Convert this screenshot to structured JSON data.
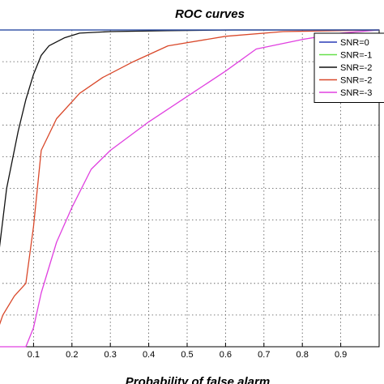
{
  "chart_data": {
    "type": "line",
    "title": "ROC curves",
    "xlabel": "Probability of false alarm",
    "ylabel": "",
    "xlim": [
      0,
      1
    ],
    "ylim": [
      0,
      1
    ],
    "grid": true,
    "legend_position": "top-right",
    "x_ticks": [
      "0.1",
      "0.2",
      "0.3",
      "0.4",
      "0.5",
      "0.6",
      "0.7",
      "0.8",
      "0.9"
    ],
    "series": [
      {
        "name": "SNR=0",
        "color": "#2a3cb5",
        "x": [
          0,
          1
        ],
        "y": [
          1.0,
          1.0
        ]
      },
      {
        "name": "SNR=-1",
        "color": "#66e04a",
        "x": [
          0,
          1
        ],
        "y": [
          1.0,
          1.0
        ]
      },
      {
        "name": "SNR=-2",
        "color": "#111111",
        "x": [
          0.0,
          0.03,
          0.06,
          0.08,
          0.1,
          0.12,
          0.14,
          0.18,
          0.22,
          0.3,
          0.45,
          0.62,
          1.0
        ],
        "y": [
          0.2,
          0.5,
          0.68,
          0.78,
          0.86,
          0.92,
          0.95,
          0.975,
          0.99,
          0.995,
          0.998,
          1.0,
          1.0
        ]
      },
      {
        "name": "SNR=-2",
        "color": "#d9482a",
        "x": [
          0.0,
          0.02,
          0.05,
          0.08,
          0.1,
          0.12,
          0.16,
          0.22,
          0.28,
          0.36,
          0.45,
          0.6,
          0.75,
          1.0
        ],
        "y": [
          0.03,
          0.1,
          0.16,
          0.2,
          0.38,
          0.62,
          0.72,
          0.8,
          0.85,
          0.9,
          0.95,
          0.98,
          0.995,
          1.0
        ]
      },
      {
        "name": "SNR=-3",
        "color": "#e040e0",
        "x": [
          0.0,
          0.08,
          0.1,
          0.12,
          0.16,
          0.2,
          0.25,
          0.3,
          0.4,
          0.5,
          0.6,
          0.68,
          0.8,
          0.9,
          1.0
        ],
        "y": [
          0.0,
          0.0,
          0.06,
          0.17,
          0.33,
          0.44,
          0.56,
          0.62,
          0.71,
          0.79,
          0.87,
          0.94,
          0.97,
          0.99,
          1.0
        ]
      }
    ]
  }
}
